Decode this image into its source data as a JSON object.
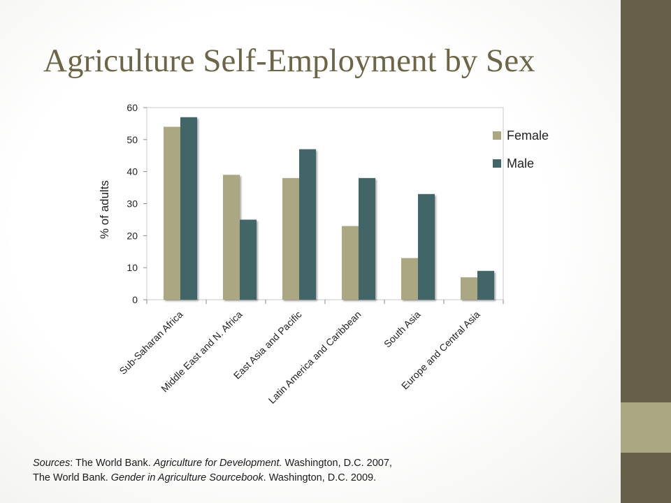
{
  "slide": {
    "title": "Agriculture Self-Employment by Sex",
    "colors": {
      "accent_dark": "#675f4a",
      "accent_light": "#aaa782",
      "title": "#6d6547"
    }
  },
  "chart_data": {
    "type": "bar",
    "title": "",
    "xlabel": "",
    "ylabel": "% of adults",
    "ylim": [
      0,
      60
    ],
    "yticks": [
      0,
      10,
      20,
      30,
      40,
      50,
      60
    ],
    "grid": false,
    "legend_position": "right",
    "categories": [
      "Sub-Saharan Africa",
      "Middle East and N. Africa",
      "East Asia and Pacific",
      "Latin America and Caribbean",
      "South Asia",
      "Europe and Central Asia"
    ],
    "series": [
      {
        "name": "Female",
        "color": "#aaa782",
        "values": [
          54,
          39,
          38,
          23,
          13,
          7
        ]
      },
      {
        "name": "Male",
        "color": "#426567",
        "values": [
          57,
          25,
          47,
          38,
          33,
          9
        ]
      }
    ]
  },
  "sources": {
    "line1": {
      "prefix": "Sources",
      "part1": ": The World Bank. ",
      "book": "Agriculture for Development.",
      "part2": " Washington, D.C. 2007,"
    },
    "line2": {
      "part1": "The World Bank. ",
      "book": "Gender in Agriculture Sourcebook",
      "part2": ". Washington, D.C. 2009."
    }
  }
}
